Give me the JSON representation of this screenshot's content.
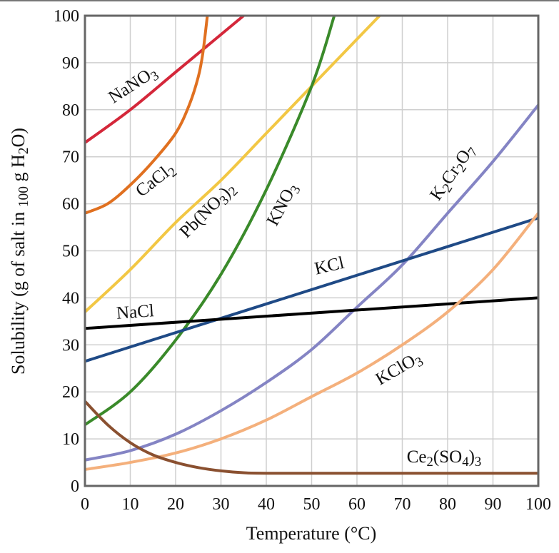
{
  "chart_data": {
    "type": "line",
    "title": "",
    "xlabel": "Temperature (°C)",
    "ylabel": "Solubility (g of salt in 100 g H2O)",
    "xlim": [
      0,
      100
    ],
    "ylim": [
      0,
      100
    ],
    "xticks": [
      0,
      10,
      20,
      30,
      40,
      50,
      60,
      70,
      80,
      90,
      100
    ],
    "yticks": [
      0,
      10,
      20,
      30,
      40,
      50,
      60,
      70,
      80,
      90,
      100
    ],
    "grid": true,
    "legend": "none (curves labeled directly)",
    "series": [
      {
        "name": "NaNO3",
        "color": "#d4273a",
        "x": [
          0,
          10,
          20,
          30,
          35
        ],
        "y": [
          73,
          80,
          88,
          96,
          100
        ]
      },
      {
        "name": "CaCl2",
        "color": "#e07020",
        "x": [
          0,
          5,
          10,
          15,
          20,
          23,
          25,
          26,
          27
        ],
        "y": [
          58,
          60,
          64,
          69,
          75,
          81,
          87,
          92,
          100
        ]
      },
      {
        "name": "Pb(NO3)2",
        "color": "#f2c744",
        "x": [
          0,
          10,
          20,
          30,
          40,
          50,
          60,
          65
        ],
        "y": [
          37,
          46,
          56,
          65,
          75,
          85,
          95,
          100
        ]
      },
      {
        "name": "KNO3",
        "color": "#3a8a2a",
        "x": [
          0,
          10,
          20,
          30,
          40,
          50,
          55
        ],
        "y": [
          13,
          20,
          31,
          45,
          63,
          85,
          100
        ]
      },
      {
        "name": "K2Cr2O7",
        "color": "#8484c4",
        "x": [
          0,
          10,
          20,
          30,
          40,
          50,
          60,
          70,
          80,
          90,
          100
        ],
        "y": [
          5.5,
          7.5,
          11,
          16,
          22,
          29,
          38,
          47,
          58,
          69,
          81
        ]
      },
      {
        "name": "KCl",
        "color": "#1f4a86",
        "x": [
          0,
          100
        ],
        "y": [
          26.5,
          57
        ]
      },
      {
        "name": "NaCl",
        "color": "#000000",
        "x": [
          0,
          100
        ],
        "y": [
          33.5,
          40
        ]
      },
      {
        "name": "KClO3",
        "color": "#f4b07c",
        "x": [
          0,
          10,
          20,
          30,
          40,
          50,
          60,
          70,
          80,
          90,
          100
        ],
        "y": [
          3.5,
          5,
          7,
          10,
          14,
          19,
          24,
          30,
          37,
          46,
          58
        ]
      },
      {
        "name": "Ce2(SO4)3",
        "color": "#8a5030",
        "x": [
          0,
          5,
          10,
          15,
          20,
          25,
          30,
          35,
          40,
          60,
          80,
          100
        ],
        "y": [
          18,
          13,
          9.2,
          6.6,
          5,
          3.9,
          3.2,
          2.8,
          2.7,
          2.7,
          2.7,
          2.7
        ]
      }
    ]
  }
}
